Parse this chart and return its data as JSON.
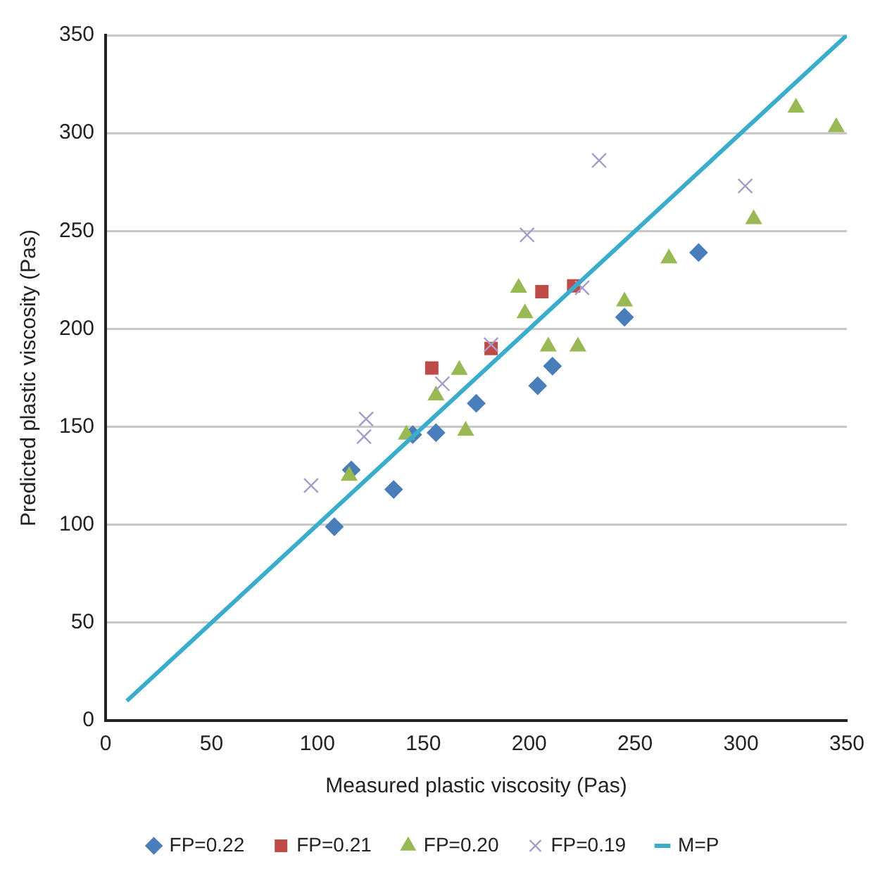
{
  "chart_data": {
    "type": "scatter",
    "xlabel": "Measured plastic viscosity (Pas)",
    "ylabel": "Predicted plastic viscosity (Pas)",
    "xlim": [
      0,
      350
    ],
    "ylim": [
      0,
      350
    ],
    "xticks": [
      0,
      50,
      100,
      150,
      200,
      250,
      300,
      350
    ],
    "yticks": [
      0,
      50,
      100,
      150,
      200,
      250,
      300,
      350
    ],
    "grid": "y",
    "legend": "bottom",
    "series": [
      {
        "name": "FP=0.22",
        "color": "#4a7ebb",
        "marker": "diamond",
        "x": [
          108,
          116,
          136,
          145,
          156,
          175,
          204,
          211,
          245,
          280
        ],
        "values": [
          99,
          128,
          118,
          146,
          147,
          162,
          171,
          181,
          206,
          239
        ]
      },
      {
        "name": "FP=0.21",
        "color": "#be4b48",
        "marker": "square",
        "x": [
          154,
          182,
          206,
          221
        ],
        "values": [
          180,
          190,
          219,
          222
        ]
      },
      {
        "name": "FP=0.20",
        "color": "#98b954",
        "marker": "triangle",
        "x": [
          115,
          142,
          156,
          167,
          170,
          195,
          198,
          209,
          223,
          245,
          266,
          306,
          326,
          345
        ],
        "values": [
          125,
          146,
          166,
          179,
          148,
          221,
          208,
          191,
          191,
          214,
          236,
          256,
          313,
          303
        ]
      },
      {
        "name": "FP=0.19",
        "color": "#a99bc9",
        "marker": "cross",
        "x": [
          97,
          122,
          123,
          159,
          182,
          199,
          225,
          233,
          302
        ],
        "values": [
          120,
          145,
          154,
          172,
          192,
          248,
          221,
          286,
          273
        ]
      },
      {
        "name": "M=P",
        "type": "line",
        "color": "#3aaccc",
        "marker": "none",
        "x": [
          10,
          350
        ],
        "values": [
          10,
          350
        ]
      }
    ]
  }
}
